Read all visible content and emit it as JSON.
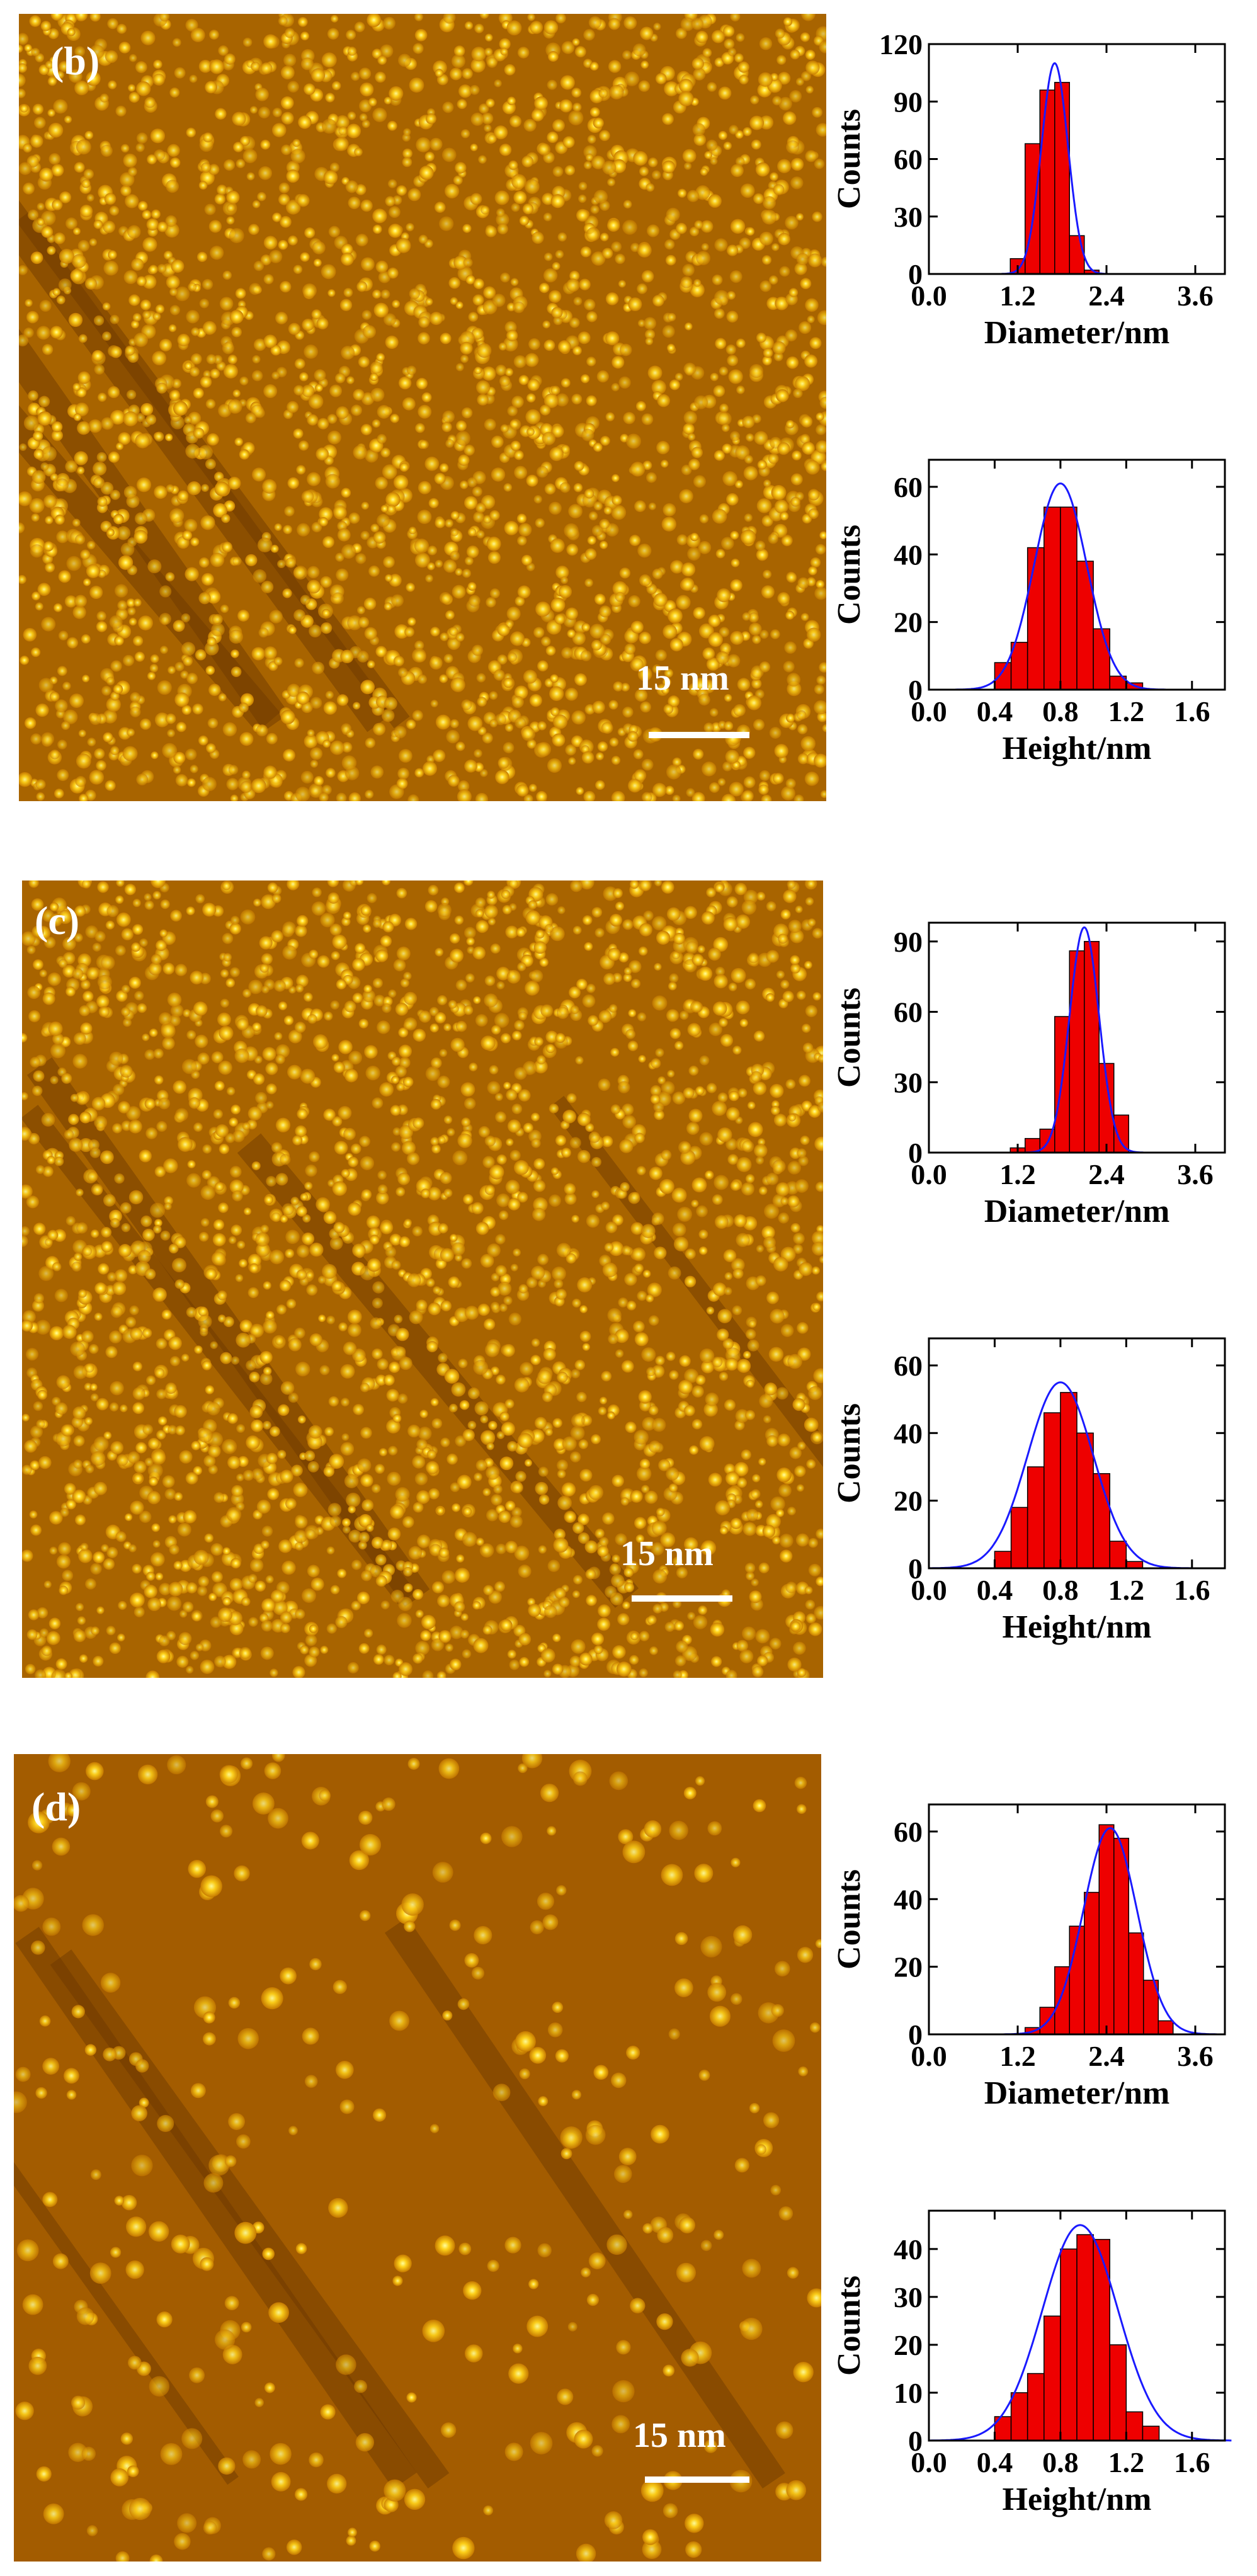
{
  "panels": [
    {
      "label": "(b)",
      "scale_bar": "15 nm",
      "image": {
        "density": "dense",
        "seed": 11
      },
      "histograms": [
        {
          "chart_data": {
            "type": "bar",
            "xlabel": "Diameter/nm",
            "ylabel": "Counts",
            "xlim": [
              0,
              4.0
            ],
            "ylim": [
              0,
              120
            ],
            "xticks": [
              "0.0",
              "1.2",
              "2.4",
              "3.6"
            ],
            "yticks": [
              "0",
              "30",
              "60",
              "90",
              "120"
            ],
            "bin_width": 0.2,
            "bins": [
              {
                "x": 1.2,
                "y": 8
              },
              {
                "x": 1.4,
                "y": 68
              },
              {
                "x": 1.6,
                "y": 96
              },
              {
                "x": 1.8,
                "y": 100
              },
              {
                "x": 2.0,
                "y": 20
              },
              {
                "x": 2.2,
                "y": 2
              }
            ],
            "fit": {
              "center": 1.7,
              "sigma": 0.18,
              "amplitude": 110
            },
            "colors": {
              "bar": "#ee0000",
              "fit": "#1a1aff"
            }
          }
        },
        {
          "chart_data": {
            "type": "bar",
            "xlabel": "Height/nm",
            "ylabel": "Counts",
            "xlim": [
              0,
              1.8
            ],
            "ylim": [
              0,
              68
            ],
            "xticks": [
              "0.0",
              "0.4",
              "0.8",
              "1.2",
              "1.6"
            ],
            "yticks": [
              "0",
              "20",
              "40",
              "60"
            ],
            "bin_width": 0.1,
            "bins": [
              {
                "x": 0.45,
                "y": 8
              },
              {
                "x": 0.55,
                "y": 14
              },
              {
                "x": 0.65,
                "y": 42
              },
              {
                "x": 0.75,
                "y": 54
              },
              {
                "x": 0.85,
                "y": 54
              },
              {
                "x": 0.95,
                "y": 38
              },
              {
                "x": 1.05,
                "y": 18
              },
              {
                "x": 1.15,
                "y": 4
              },
              {
                "x": 1.25,
                "y": 2
              }
            ],
            "fit": {
              "center": 0.8,
              "sigma": 0.16,
              "amplitude": 61
            },
            "colors": {
              "bar": "#ee0000",
              "fit": "#1a1aff"
            }
          }
        }
      ]
    },
    {
      "label": "(c)",
      "scale_bar": "15 nm",
      "image": {
        "density": "dense",
        "seed": 23
      },
      "histograms": [
        {
          "chart_data": {
            "type": "bar",
            "xlabel": "Diameter/nm",
            "ylabel": "Counts",
            "xlim": [
              0,
              4.0
            ],
            "ylim": [
              0,
              98
            ],
            "xticks": [
              "0.0",
              "1.2",
              "2.4",
              "3.6"
            ],
            "yticks": [
              "0",
              "30",
              "60",
              "90"
            ],
            "bin_width": 0.2,
            "bins": [
              {
                "x": 1.2,
                "y": 2
              },
              {
                "x": 1.4,
                "y": 6
              },
              {
                "x": 1.6,
                "y": 10
              },
              {
                "x": 1.8,
                "y": 58
              },
              {
                "x": 2.0,
                "y": 86
              },
              {
                "x": 2.2,
                "y": 90
              },
              {
                "x": 2.4,
                "y": 38
              },
              {
                "x": 2.6,
                "y": 16
              }
            ],
            "fit": {
              "center": 2.1,
              "sigma": 0.2,
              "amplitude": 96
            },
            "colors": {
              "bar": "#ee0000",
              "fit": "#1a1aff"
            }
          }
        },
        {
          "chart_data": {
            "type": "bar",
            "xlabel": "Height/nm",
            "ylabel": "Counts",
            "xlim": [
              0,
              1.8
            ],
            "ylim": [
              0,
              68
            ],
            "xticks": [
              "0.0",
              "0.4",
              "0.8",
              "1.2",
              "1.6"
            ],
            "yticks": [
              "0",
              "20",
              "40",
              "60"
            ],
            "bin_width": 0.1,
            "bins": [
              {
                "x": 0.45,
                "y": 5
              },
              {
                "x": 0.55,
                "y": 18
              },
              {
                "x": 0.65,
                "y": 30
              },
              {
                "x": 0.75,
                "y": 46
              },
              {
                "x": 0.85,
                "y": 52
              },
              {
                "x": 0.95,
                "y": 40
              },
              {
                "x": 1.05,
                "y": 28
              },
              {
                "x": 1.15,
                "y": 8
              },
              {
                "x": 1.25,
                "y": 2
              }
            ],
            "fit": {
              "center": 0.8,
              "sigma": 0.2,
              "amplitude": 55
            },
            "colors": {
              "bar": "#ee0000",
              "fit": "#1a1aff"
            }
          }
        }
      ]
    },
    {
      "label": "(d)",
      "scale_bar": "15 nm",
      "image": {
        "density": "sparse",
        "seed": 37
      },
      "histograms": [
        {
          "chart_data": {
            "type": "bar",
            "xlabel": "Diameter/nm",
            "ylabel": "Counts",
            "xlim": [
              0,
              4.0
            ],
            "ylim": [
              0,
              68
            ],
            "xticks": [
              "0.0",
              "1.2",
              "2.4",
              "3.6"
            ],
            "yticks": [
              "0",
              "20",
              "40",
              "60"
            ],
            "bin_width": 0.2,
            "bins": [
              {
                "x": 1.4,
                "y": 2
              },
              {
                "x": 1.6,
                "y": 8
              },
              {
                "x": 1.8,
                "y": 20
              },
              {
                "x": 2.0,
                "y": 32
              },
              {
                "x": 2.2,
                "y": 42
              },
              {
                "x": 2.4,
                "y": 62
              },
              {
                "x": 2.6,
                "y": 58
              },
              {
                "x": 2.8,
                "y": 30
              },
              {
                "x": 3.0,
                "y": 16
              },
              {
                "x": 3.2,
                "y": 4
              }
            ],
            "fit": {
              "center": 2.45,
              "sigma": 0.36,
              "amplitude": 61
            },
            "colors": {
              "bar": "#ee0000",
              "fit": "#1a1aff"
            }
          }
        },
        {
          "chart_data": {
            "type": "bar",
            "xlabel": "Height/nm",
            "ylabel": "Counts",
            "xlim": [
              0,
              1.8
            ],
            "ylim": [
              0,
              48
            ],
            "xticks": [
              "0.0",
              "0.4",
              "0.8",
              "1.2",
              "1.6"
            ],
            "yticks": [
              "0",
              "10",
              "20",
              "30",
              "40"
            ],
            "bin_width": 0.1,
            "bins": [
              {
                "x": 0.45,
                "y": 5
              },
              {
                "x": 0.55,
                "y": 10
              },
              {
                "x": 0.65,
                "y": 14
              },
              {
                "x": 0.75,
                "y": 26
              },
              {
                "x": 0.85,
                "y": 40
              },
              {
                "x": 0.95,
                "y": 43
              },
              {
                "x": 1.05,
                "y": 42
              },
              {
                "x": 1.15,
                "y": 20
              },
              {
                "x": 1.25,
                "y": 6
              },
              {
                "x": 1.35,
                "y": 3
              }
            ],
            "fit": {
              "center": 0.92,
              "sigma": 0.23,
              "amplitude": 45
            },
            "colors": {
              "bar": "#ee0000",
              "fit": "#1a1aff"
            }
          }
        }
      ]
    }
  ]
}
